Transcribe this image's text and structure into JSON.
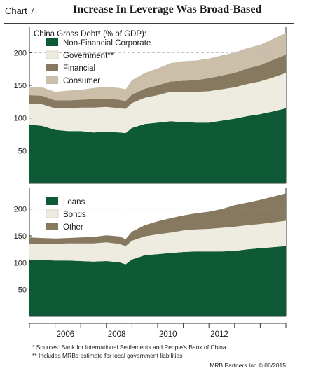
{
  "header": {
    "chart_number": "Chart 7",
    "title": "Increase In Leverage Was Broad-Based"
  },
  "footnotes": {
    "source": "*  Sources: Bank for International Settlements and People's Bank of China",
    "includes": "** Includes MRBs estimate for local government liabilities",
    "credit": "MRB Partners Inc © 06/2015"
  },
  "colors": {
    "dark_green": "#0e5a37",
    "light_cream": "#eeebe1",
    "brown_gray": "#87795f",
    "tan": "#cbbfaa",
    "grid": "#bdbdbd",
    "axis": "#333333"
  },
  "chart_data": [
    {
      "type": "area",
      "stacked": true,
      "title": "China Gross Debt* (% of GDP):",
      "x_ticks": [
        "2006",
        "2008",
        "2010",
        "2012"
      ],
      "ylim": [
        0,
        240
      ],
      "y_ticks": [
        50,
        100,
        150,
        200
      ],
      "grid": "dashed at 200",
      "legend_position": "top-left",
      "series": [
        {
          "name": "Non-Financial Corporate",
          "color": "#0e5a37",
          "x": [
            2005.0,
            2005.5,
            2006.0,
            2006.5,
            2007.0,
            2007.5,
            2008.0,
            2008.5,
            2008.75,
            2009.0,
            2009.5,
            2010.0,
            2010.5,
            2011.0,
            2011.5,
            2012.0,
            2012.5,
            2013.0,
            2013.5,
            2014.0,
            2014.5,
            2015.0
          ],
          "values": [
            90,
            88,
            82,
            80,
            80,
            78,
            79,
            78,
            77,
            85,
            91,
            93,
            95,
            94,
            93,
            93,
            96,
            99,
            103,
            106,
            110,
            115
          ]
        },
        {
          "name": "Government**",
          "color": "#eeebe1",
          "x": [
            2005.0,
            2005.5,
            2006.0,
            2006.5,
            2007.0,
            2007.5,
            2008.0,
            2008.5,
            2008.75,
            2009.0,
            2009.5,
            2010.0,
            2010.5,
            2011.0,
            2011.5,
            2012.0,
            2012.5,
            2013.0,
            2013.5,
            2014.0,
            2014.5,
            2015.0
          ],
          "values": [
            32,
            33,
            33,
            35,
            36,
            38,
            38,
            37,
            37,
            38,
            40,
            42,
            45,
            46,
            47,
            48,
            48,
            48,
            49,
            50,
            52,
            54
          ]
        },
        {
          "name": "Financial",
          "color": "#87795f",
          "x": [
            2005.0,
            2005.5,
            2006.0,
            2006.5,
            2007.0,
            2007.5,
            2008.0,
            2008.5,
            2008.75,
            2009.0,
            2009.5,
            2010.0,
            2010.5,
            2011.0,
            2011.5,
            2012.0,
            2012.5,
            2013.0,
            2013.5,
            2014.0,
            2014.5,
            2015.0
          ],
          "values": [
            13,
            13,
            12,
            12,
            12,
            13,
            13,
            13,
            12,
            13,
            14,
            15,
            16,
            17,
            18,
            20,
            21,
            22,
            24,
            25,
            27,
            28
          ]
        },
        {
          "name": "Consumer",
          "color": "#cbbfaa",
          "x": [
            2005.0,
            2005.5,
            2006.0,
            2006.5,
            2007.0,
            2007.5,
            2008.0,
            2008.5,
            2008.75,
            2009.0,
            2009.5,
            2010.0,
            2010.5,
            2011.0,
            2011.5,
            2012.0,
            2012.5,
            2013.0,
            2013.5,
            2014.0,
            2014.5,
            2015.0
          ],
          "values": [
            12,
            13,
            13,
            15,
            15,
            17,
            18,
            18,
            18,
            22,
            24,
            26,
            28,
            30,
            30,
            30,
            31,
            31,
            31,
            31,
            32,
            33
          ]
        }
      ]
    },
    {
      "type": "area",
      "stacked": true,
      "x_ticks": [
        "2006",
        "2008",
        "2010",
        "2012"
      ],
      "ylim": [
        0,
        240
      ],
      "y_ticks": [
        50,
        100,
        150,
        200
      ],
      "grid": "dashed at 200",
      "legend_position": "top-left",
      "series": [
        {
          "name": "Loans",
          "color": "#0e5a37",
          "x": [
            2005.0,
            2005.5,
            2006.0,
            2006.5,
            2007.0,
            2007.5,
            2008.0,
            2008.5,
            2008.75,
            2009.0,
            2009.5,
            2010.0,
            2010.5,
            2011.0,
            2011.5,
            2012.0,
            2012.5,
            2013.0,
            2013.5,
            2014.0,
            2014.5,
            2015.0
          ],
          "values": [
            106,
            105,
            104,
            104,
            103,
            102,
            103,
            101,
            97,
            106,
            114,
            116,
            118,
            120,
            121,
            121,
            121,
            122,
            125,
            127,
            129,
            131
          ]
        },
        {
          "name": "Bonds",
          "color": "#eeebe1",
          "x": [
            2005.0,
            2005.5,
            2006.0,
            2006.5,
            2007.0,
            2007.5,
            2008.0,
            2008.5,
            2008.75,
            2009.0,
            2009.5,
            2010.0,
            2010.5,
            2011.0,
            2011.5,
            2012.0,
            2012.5,
            2013.0,
            2013.5,
            2014.0,
            2014.5,
            2015.0
          ],
          "values": [
            29,
            30,
            31,
            32,
            33,
            34,
            35,
            34,
            34,
            35,
            35,
            37,
            38,
            40,
            41,
            42,
            44,
            45,
            45,
            45,
            46,
            47
          ]
        },
        {
          "name": "Other",
          "color": "#87795f",
          "x": [
            2005.0,
            2005.5,
            2006.0,
            2006.5,
            2007.0,
            2007.5,
            2008.0,
            2008.5,
            2008.75,
            2009.0,
            2009.5,
            2010.0,
            2010.5,
            2011.0,
            2011.5,
            2012.0,
            2012.5,
            2013.0,
            2013.5,
            2014.0,
            2014.5,
            2015.0
          ],
          "values": [
            12,
            11,
            10,
            10,
            11,
            12,
            13,
            14,
            13,
            17,
            21,
            24,
            27,
            28,
            30,
            32,
            35,
            40,
            42,
            45,
            48,
            51
          ]
        }
      ]
    }
  ]
}
